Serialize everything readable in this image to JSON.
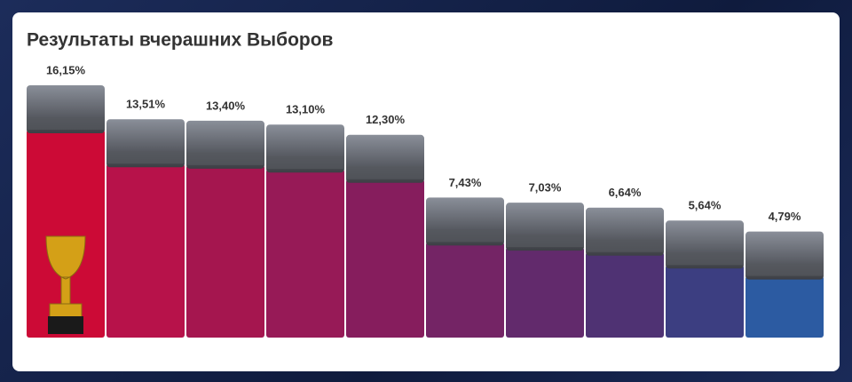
{
  "chart_data": {
    "type": "bar",
    "title": "Результаты вчерашних Выборов",
    "categories": [
      null,
      null,
      null,
      null,
      null,
      null,
      null,
      null,
      null,
      null
    ],
    "values": [
      16.15,
      13.51,
      13.4,
      13.1,
      12.3,
      7.43,
      7.03,
      6.64,
      5.64,
      4.79
    ],
    "value_labels": [
      "16,15%",
      "13,51%",
      "13,40%",
      "13,10%",
      "12,30%",
      "7,43%",
      "7,03%",
      "6,64%",
      "5,64%",
      "4,79%"
    ],
    "colors": [
      "#cc0a36",
      "#b7124a",
      "#a5164f",
      "#971a57",
      "#861d5d",
      "#742465",
      "#622a6c",
      "#4f3273",
      "#3c3e81",
      "#2c5ba2"
    ]
  }
}
